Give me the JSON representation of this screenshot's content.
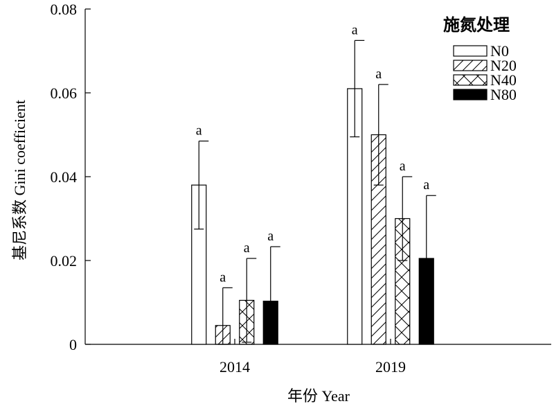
{
  "chart_data": {
    "type": "bar",
    "xlabel": "年份 Year",
    "ylabel": "基尼系数 Gini coefficient",
    "ylim": [
      0,
      0.08
    ],
    "yticks": [
      "0",
      "0.02",
      "0.04",
      "0.06",
      "0.08"
    ],
    "categories": [
      "2014",
      "2019"
    ],
    "legend": {
      "title": "施氮处理",
      "position": "top-right"
    },
    "series": [
      {
        "name": "N0",
        "pattern": "open",
        "values": [
          0.038,
          0.061
        ],
        "errors": [
          0.0105,
          0.0115
        ],
        "labels": [
          "a",
          "a"
        ]
      },
      {
        "name": "N20",
        "pattern": "diagonal-hatch",
        "values": [
          0.0045,
          0.05
        ],
        "errors": [
          0.009,
          0.012
        ],
        "labels": [
          "a",
          "a"
        ]
      },
      {
        "name": "N40",
        "pattern": "cross-hatch",
        "values": [
          0.0105,
          0.03
        ],
        "errors": [
          0.01,
          0.01
        ],
        "labels": [
          "a",
          "a"
        ]
      },
      {
        "name": "N80",
        "pattern": "solid-black",
        "values": [
          0.0103,
          0.0205
        ],
        "errors": [
          0.013,
          0.015
        ],
        "labels": [
          "a",
          "a"
        ]
      }
    ],
    "grid": false
  }
}
